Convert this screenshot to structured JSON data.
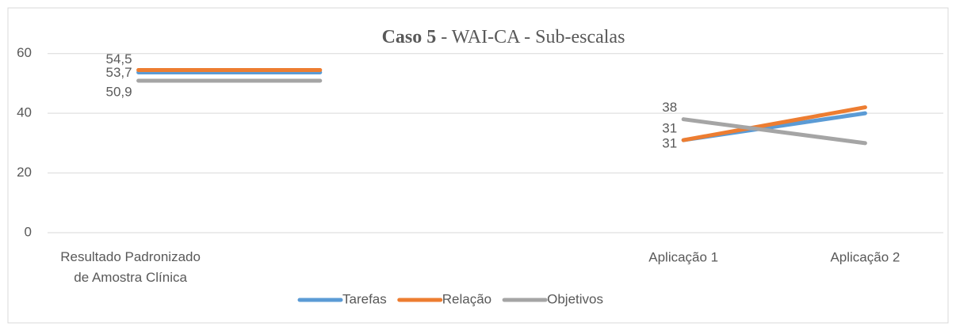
{
  "chart_data": {
    "type": "line",
    "title": {
      "bold": "Caso 5",
      "rest": "- WAI-CA - Sub-escalas"
    },
    "categories": [
      "Resultado Padronizado de Amostra Clínica",
      null,
      null,
      "Aplicação 1",
      "Aplicação 2"
    ],
    "series": [
      {
        "name": "Tarefas",
        "color": "#5b9bd5",
        "values": [
          53.7,
          53.7,
          null,
          31,
          40
        ],
        "value_labels": [
          "53,7",
          null,
          null,
          "31",
          null
        ]
      },
      {
        "name": "Relação",
        "color": "#ed7d31",
        "values": [
          54.5,
          54.5,
          null,
          31,
          42
        ],
        "value_labels": [
          "54,5",
          null,
          null,
          "31",
          null
        ]
      },
      {
        "name": "Objetivos",
        "color": "#a5a5a5",
        "values": [
          50.9,
          50.9,
          null,
          38,
          30
        ],
        "value_labels": [
          "50,9",
          null,
          null,
          "38",
          null
        ]
      }
    ],
    "ylim": [
      0,
      70
    ],
    "yticks": [
      0,
      20,
      40,
      60
    ],
    "grid": true,
    "legend": "bottom"
  }
}
